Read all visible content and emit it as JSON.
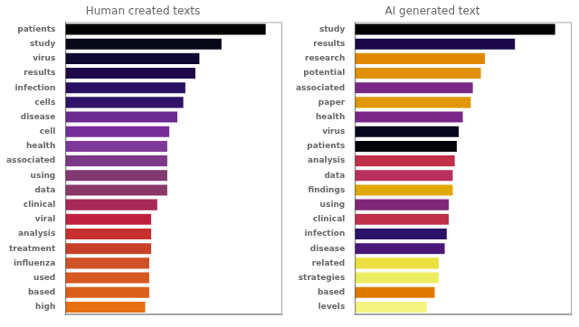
{
  "chart_data": [
    {
      "type": "bar",
      "orientation": "horizontal",
      "title": "Human created texts",
      "categories": [
        "patients",
        "study",
        "virus",
        "results",
        "infection",
        "cells",
        "disease",
        "cell",
        "health",
        "associated",
        "using",
        "data",
        "clinical",
        "viral",
        "analysis",
        "treatment",
        "influenza",
        "used",
        "based",
        "high"
      ],
      "values": [
        1,
        0.78,
        0.67,
        0.65,
        0.6,
        0.59,
        0.56,
        0.52,
        0.51,
        0.51,
        0.51,
        0.51,
        0.46,
        0.43,
        0.43,
        0.43,
        0.42,
        0.42,
        0.42,
        0.4
      ],
      "colors": [
        "#000000",
        "#080818",
        "#0e0830",
        "#1e0848",
        "#2a1060",
        "#301468",
        "#6a2a90",
        "#762e98",
        "#7e389a",
        "#7e3888",
        "#823870",
        "#8a3868",
        "#a82858",
        "#c02040",
        "#c83030",
        "#c84028",
        "#d05028",
        "#d85822",
        "#dc601a",
        "#e87010"
      ],
      "xlim": [
        0,
        1.08
      ],
      "xticks": [],
      "tick_labels": "y",
      "grid": false
    },
    {
      "type": "bar",
      "orientation": "horizontal",
      "title": "AI generated text",
      "categories": [
        "study",
        "results",
        "research",
        "potential",
        "associated",
        "paper",
        "health",
        "virus",
        "patients",
        "analysis",
        "data",
        "findings",
        "using",
        "clinical",
        "infection",
        "disease",
        "related",
        "strategies",
        "based",
        "levels"
      ],
      "values": [
        1,
        0.8,
        0.65,
        0.63,
        0.59,
        0.58,
        0.54,
        0.52,
        0.51,
        0.5,
        0.49,
        0.49,
        0.47,
        0.47,
        0.46,
        0.45,
        0.42,
        0.42,
        0.4,
        0.36
      ],
      "colors": [
        "#000000",
        "#1a0848",
        "#e08800",
        "#e09000",
        "#7a2888",
        "#e09800",
        "#7a2888",
        "#08081e",
        "#020208",
        "#c03048",
        "#b83060",
        "#e0a800",
        "#802878",
        "#c03048",
        "#2a1468",
        "#4a1878",
        "#ece040",
        "#ecec60",
        "#e07800",
        "#f4f480"
      ],
      "xlim": [
        0,
        1.08
      ],
      "xticks": [],
      "tick_labels": "y",
      "grid": false
    }
  ]
}
